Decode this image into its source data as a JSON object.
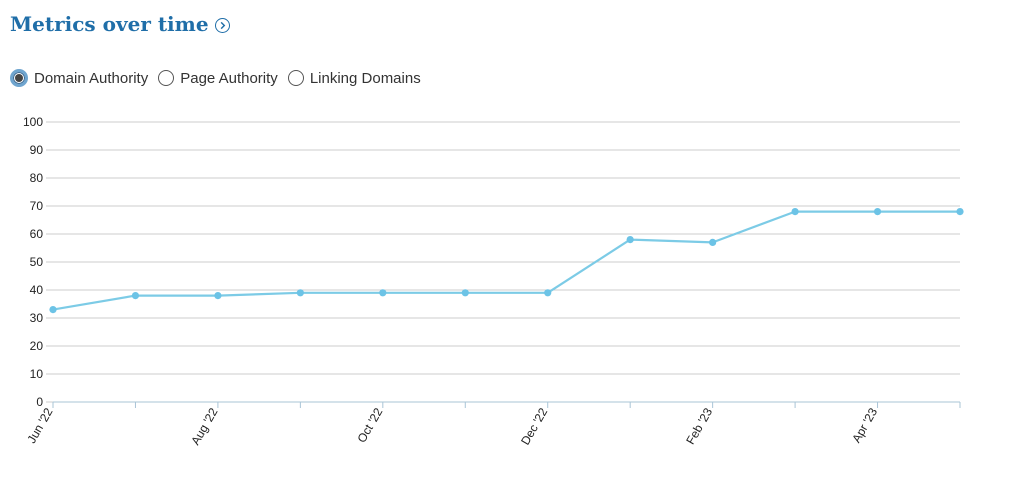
{
  "header": {
    "title": "Metrics over time",
    "info_icon": "chevron-right-circle-icon"
  },
  "metric_selector": {
    "options": [
      {
        "label": "Domain Authority",
        "selected": true
      },
      {
        "label": "Page Authority",
        "selected": false
      },
      {
        "label": "Linking Domains",
        "selected": false
      }
    ]
  },
  "colors": {
    "title": "#1f6ea8",
    "series_line": "#7ccbe6",
    "series_point": "#6cc3e6",
    "grid": "#cccccc"
  },
  "chart_data": {
    "type": "line",
    "title": "",
    "xlabel": "",
    "ylabel": "",
    "ylim": [
      0,
      100
    ],
    "yticks": [
      0,
      10,
      20,
      30,
      40,
      50,
      60,
      70,
      80,
      90,
      100
    ],
    "x_tick_labels": [
      "Jun '22",
      "Aug '22",
      "Oct '22",
      "Dec '22",
      "Feb '23",
      "Apr '23"
    ],
    "x": [
      "Jun '22",
      "Jul '22",
      "Aug '22",
      "Sep '22",
      "Oct '22",
      "Nov '22",
      "Dec '22",
      "Jan '23",
      "Feb '23",
      "Mar '23",
      "Apr '23",
      "May '23"
    ],
    "series": [
      {
        "name": "Domain Authority",
        "values": [
          33,
          38,
          38,
          39,
          39,
          39,
          39,
          58,
          57,
          68,
          68,
          68
        ]
      }
    ],
    "grid": true,
    "legend": "none"
  }
}
